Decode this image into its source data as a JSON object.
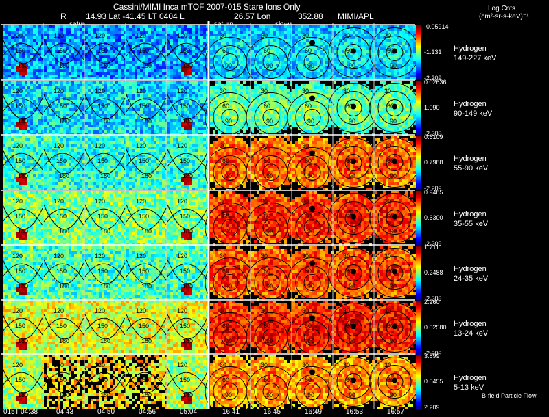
{
  "header": {
    "title": "Cassini/MIMI Inca mTOF  2007-015   Stare   Ions Only",
    "line2_r": "R",
    "line2_lat": "14.93 Lat -41.45 LT 0404 L",
    "line2_lon": "26.57 Lon",
    "line2_val": "352.88",
    "line2_src": "MIMI/APL",
    "frame_labels": [
      "satur",
      "saturn",
      "sky-vi"
    ]
  },
  "colorbar_title": [
    "Log Cnts",
    "(cm²-sr-s-keV)⁻¹"
  ],
  "footer_note": "B-field Particle Flow",
  "chart_data": {
    "type": "heatmap",
    "description_columns": [
      "04:38",
      "04:43",
      "04:50",
      "04:56",
      "05:04",
      "16:41",
      "16:45",
      "16:49",
      "16:53",
      "16:57"
    ],
    "first_time_prefix": "015T",
    "rows": [
      {
        "species": "Hydrogen",
        "energy": "149-227 keV",
        "cb_max": "-0.05914",
        "cb_mid": "-1.131",
        "cb_min": "-2.209"
      },
      {
        "species": "Hydrogen",
        "energy": "90-149 keV",
        "cb_max": "0.02636",
        "cb_mid": "1.090",
        "cb_min": "-2.209"
      },
      {
        "species": "Hydrogen",
        "energy": "55-90 keV",
        "cb_max": "0.6109",
        "cb_mid": "0.7988",
        "cb_min": "-2.209"
      },
      {
        "species": "Hydrogen",
        "energy": "35-55 keV",
        "cb_max": "0.9485",
        "cb_mid": "0.6300",
        "cb_min": "-2.209"
      },
      {
        "species": "Hydrogen",
        "energy": "24-35 keV",
        "cb_max": "1.711",
        "cb_mid": "0.2488",
        "cb_min": "-2.209"
      },
      {
        "species": "Hydrogen",
        "energy": "13-24 keV",
        "cb_max": "2.260",
        "cb_mid": "0.02580",
        "cb_min": "-2.209"
      },
      {
        "species": "Hydrogen",
        "energy": "5-13 keV",
        "cb_max": "3.899",
        "cb_mid": "0.0455",
        "cb_min": "2.209"
      }
    ],
    "contour_labels": [
      "30",
      "60",
      "90",
      "120",
      "150",
      "180"
    ]
  }
}
